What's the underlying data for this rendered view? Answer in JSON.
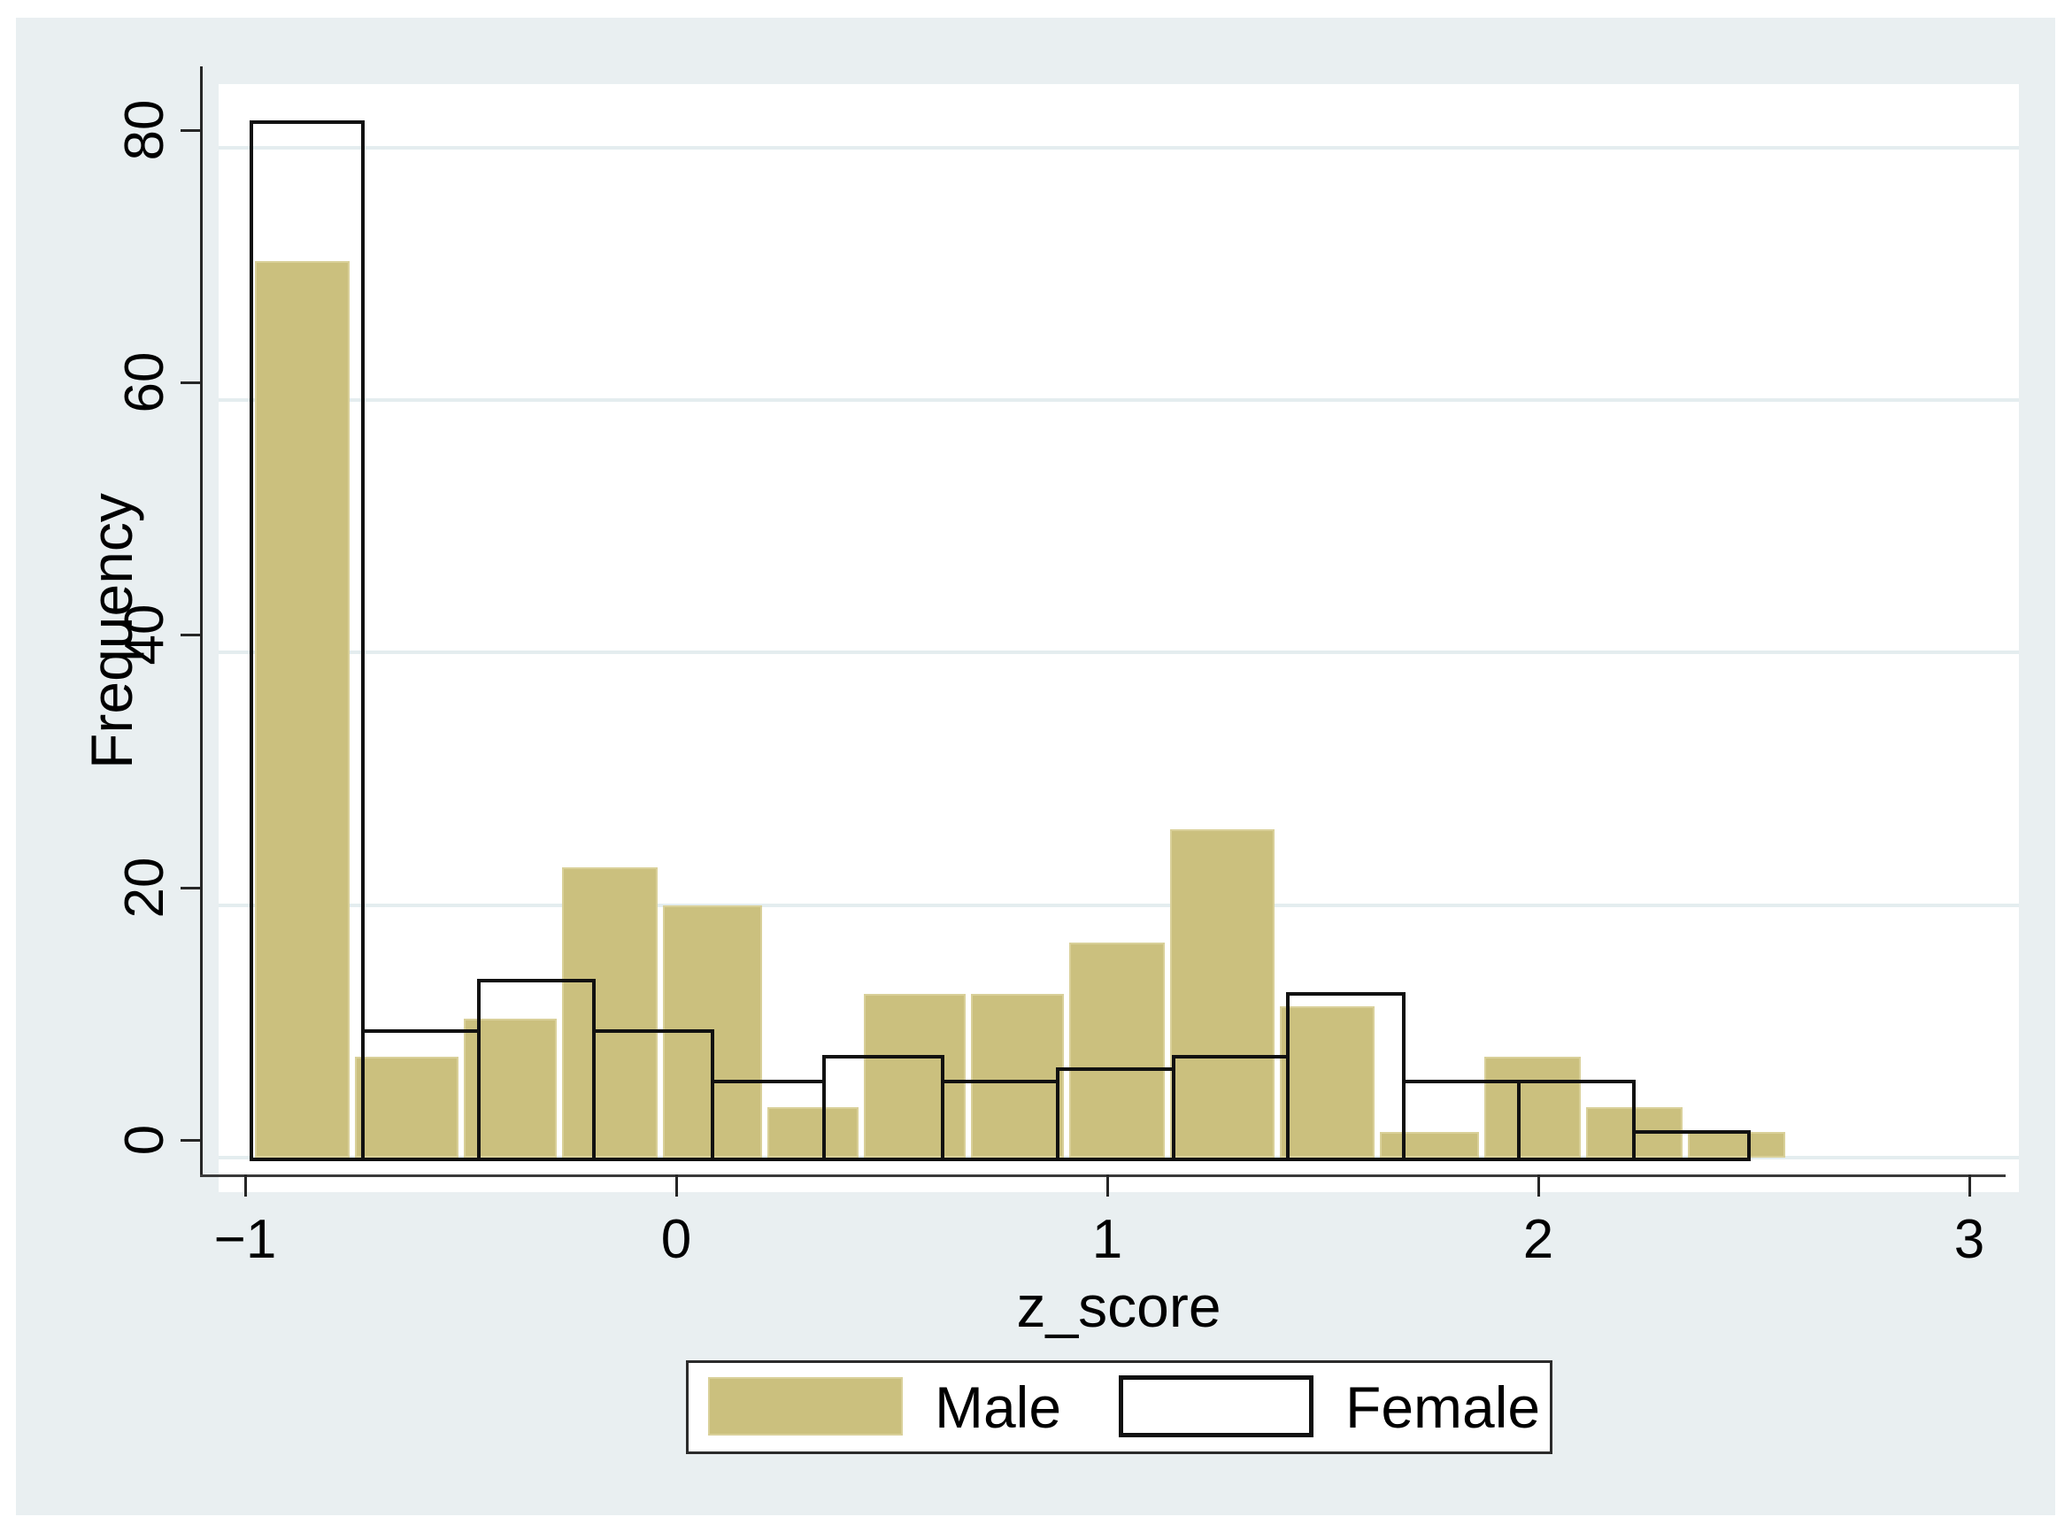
{
  "figure": {
    "background_color": "#e9eff1",
    "plot_background_color": "#ffffff",
    "grid_color": "#e4edef",
    "axis_color": "#262626",
    "male_fill_color": "#cbc07e",
    "male_edge_color": "#d9d099",
    "female_outline_color": "#111111",
    "text_color": "#000000"
  },
  "chart_data": {
    "type": "bar",
    "subtype": "overlaid-histograms",
    "title": "",
    "xlabel": "z_score",
    "ylabel": "Frequency",
    "xlim": [
      -1.1,
      3.08
    ],
    "ylim": [
      0,
      85
    ],
    "x_ticks": [
      -1,
      0,
      1,
      2,
      3
    ],
    "x_tick_labels": [
      "−1",
      "0",
      "1",
      "2",
      "3"
    ],
    "y_ticks": [
      0,
      20,
      40,
      60,
      80
    ],
    "y_tick_labels": [
      "0",
      "20",
      "40",
      "60",
      "80"
    ],
    "grid": "horizontal-gridlines-on",
    "legend_position": "bottom-center",
    "series": [
      {
        "name": "Male",
        "style": "filled",
        "color": "#cbc07e",
        "bins": [
          {
            "start": -1.02,
            "end": -0.788,
            "count": 71
          },
          {
            "start": -0.788,
            "end": -0.536,
            "count": 8
          },
          {
            "start": -0.536,
            "end": -0.308,
            "count": 11
          },
          {
            "start": -0.308,
            "end": -0.074,
            "count": 23
          },
          {
            "start": -0.074,
            "end": 0.168,
            "count": 20
          },
          {
            "start": 0.168,
            "end": 0.392,
            "count": 4
          },
          {
            "start": 0.392,
            "end": 0.641,
            "count": 13
          },
          {
            "start": 0.641,
            "end": 0.869,
            "count": 13
          },
          {
            "start": 0.869,
            "end": 1.103,
            "count": 17
          },
          {
            "start": 1.103,
            "end": 1.357,
            "count": 26
          },
          {
            "start": 1.357,
            "end": 1.589,
            "count": 12
          },
          {
            "start": 1.589,
            "end": 1.832,
            "count": 2
          },
          {
            "start": 1.832,
            "end": 2.068,
            "count": 8
          },
          {
            "start": 2.068,
            "end": 2.304,
            "count": 4
          },
          {
            "start": 2.304,
            "end": 2.542,
            "count": 2
          }
        ]
      },
      {
        "name": "Female",
        "style": "hollow-outline",
        "color": "#111111",
        "bins": [
          {
            "start": -1.023,
            "end": -0.764,
            "count": 82
          },
          {
            "start": -0.764,
            "end": -0.495,
            "count": 10
          },
          {
            "start": -0.495,
            "end": -0.228,
            "count": 14
          },
          {
            "start": -0.228,
            "end": 0.047,
            "count": 10
          },
          {
            "start": 0.047,
            "end": 0.306,
            "count": 6
          },
          {
            "start": 0.306,
            "end": 0.581,
            "count": 8
          },
          {
            "start": 0.581,
            "end": 0.848,
            "count": 6
          },
          {
            "start": 0.848,
            "end": 1.117,
            "count": 7
          },
          {
            "start": 1.117,
            "end": 1.382,
            "count": 8
          },
          {
            "start": 1.382,
            "end": 1.651,
            "count": 13
          },
          {
            "start": 1.651,
            "end": 1.918,
            "count": 6
          },
          {
            "start": 1.918,
            "end": 2.185,
            "count": 6
          },
          {
            "start": 2.185,
            "end": 2.452,
            "count": 2
          }
        ]
      }
    ]
  },
  "legend": {
    "items": [
      {
        "label": "Male"
      },
      {
        "label": "Female"
      }
    ]
  }
}
